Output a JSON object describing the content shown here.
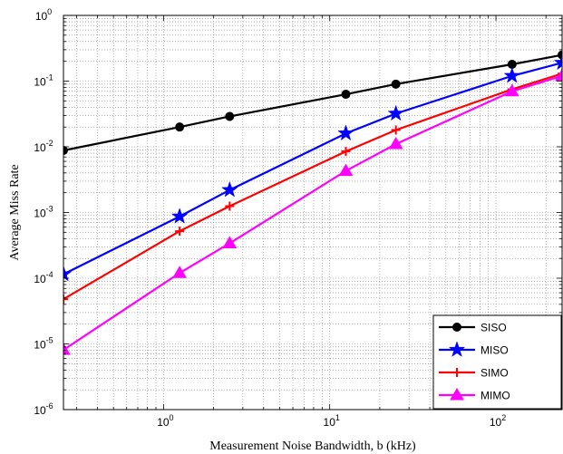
{
  "chart_data": {
    "type": "line",
    "title": "",
    "xlabel": "Measurement Noise Bandwidth, b (kHz)",
    "ylabel": "Average Miss Rate",
    "xscale": "log",
    "yscale": "log",
    "xlim": [
      0.25,
      250
    ],
    "ylim": [
      1e-06,
      1
    ],
    "xticks": [
      {
        "value": 1,
        "base": "10",
        "exp": "0"
      },
      {
        "value": 10,
        "base": "10",
        "exp": "1"
      },
      {
        "value": 100,
        "base": "10",
        "exp": "2"
      }
    ],
    "yticks": [
      {
        "value": 1e-06,
        "base": "10",
        "exp": "-6"
      },
      {
        "value": 1e-05,
        "base": "10",
        "exp": "-5"
      },
      {
        "value": 0.0001,
        "base": "10",
        "exp": "-4"
      },
      {
        "value": 0.001,
        "base": "10",
        "exp": "-3"
      },
      {
        "value": 0.01,
        "base": "10",
        "exp": "-2"
      },
      {
        "value": 0.1,
        "base": "10",
        "exp": "-1"
      },
      {
        "value": 1,
        "base": "10",
        "exp": "0"
      }
    ],
    "grid": true,
    "legend_position": "bottom-right",
    "series": [
      {
        "name": "SISO",
        "color": "#000000",
        "marker": "circle",
        "x": [
          0.25,
          1.25,
          2.5,
          12.5,
          25,
          125,
          250
        ],
        "y": [
          0.0088,
          0.02,
          0.029,
          0.063,
          0.09,
          0.18,
          0.25
        ]
      },
      {
        "name": "MISO",
        "color": "#0000ff",
        "marker": "star",
        "x": [
          0.25,
          1.25,
          2.5,
          12.5,
          25,
          125,
          250
        ],
        "y": [
          0.000115,
          0.00087,
          0.0022,
          0.016,
          0.032,
          0.12,
          0.19
        ]
      },
      {
        "name": "SIMO",
        "color": "#ff0000",
        "marker": "plus",
        "x": [
          0.25,
          1.25,
          2.5,
          12.5,
          25,
          125,
          250
        ],
        "y": [
          4.8e-05,
          0.00052,
          0.00125,
          0.0085,
          0.018,
          0.075,
          0.13
        ]
      },
      {
        "name": "MIMO",
        "color": "#ff00ff",
        "marker": "triangle",
        "x": [
          0.25,
          1.25,
          2.5,
          12.5,
          25,
          125,
          250
        ],
        "y": [
          8.1e-06,
          0.00012,
          0.00034,
          0.0043,
          0.011,
          0.07,
          0.12
        ]
      }
    ]
  }
}
